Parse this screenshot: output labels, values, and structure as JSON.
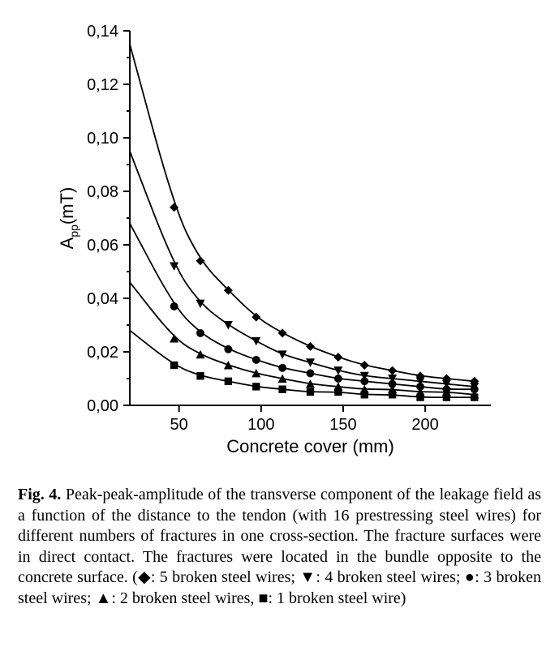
{
  "chart": {
    "type": "line-scatter",
    "background_color": "#ffffff",
    "line_color": "#000000",
    "marker_color": "#000000",
    "x_axis": {
      "title": "Concrete cover (mm)",
      "min": 20,
      "max": 240,
      "ticks": [
        50,
        100,
        150,
        200
      ],
      "title_fontsize": 22,
      "tick_fontsize": 20
    },
    "y_axis": {
      "title": "A_pp(mT)",
      "min": 0.0,
      "max": 0.14,
      "ticks": [
        0.0,
        0.02,
        0.04,
        0.06,
        0.08,
        0.1,
        0.12,
        0.14
      ],
      "tick_labels": [
        "0,00",
        "0,02",
        "0,04",
        "0,06",
        "0,08",
        "0,10",
        "0,12",
        "0,14"
      ],
      "title_fontsize": 22,
      "tick_fontsize": 20
    },
    "series": [
      {
        "name": "5 broken steel wires",
        "marker": "diamond",
        "curve_y_at_x20": 0.135,
        "points": [
          {
            "x": 47,
            "y": 0.074
          },
          {
            "x": 63,
            "y": 0.054
          },
          {
            "x": 80,
            "y": 0.043
          },
          {
            "x": 97,
            "y": 0.033
          },
          {
            "x": 113,
            "y": 0.027
          },
          {
            "x": 130,
            "y": 0.022
          },
          {
            "x": 147,
            "y": 0.018
          },
          {
            "x": 163,
            "y": 0.015
          },
          {
            "x": 180,
            "y": 0.013
          },
          {
            "x": 197,
            "y": 0.011
          },
          {
            "x": 213,
            "y": 0.01
          },
          {
            "x": 230,
            "y": 0.009
          }
        ]
      },
      {
        "name": "4 broken steel wires",
        "marker": "triangle-down",
        "curve_y_at_x20": 0.095,
        "points": [
          {
            "x": 47,
            "y": 0.052
          },
          {
            "x": 63,
            "y": 0.038
          },
          {
            "x": 80,
            "y": 0.03
          },
          {
            "x": 97,
            "y": 0.024
          },
          {
            "x": 113,
            "y": 0.019
          },
          {
            "x": 130,
            "y": 0.016
          },
          {
            "x": 147,
            "y": 0.013
          },
          {
            "x": 163,
            "y": 0.011
          },
          {
            "x": 180,
            "y": 0.01
          },
          {
            "x": 197,
            "y": 0.009
          },
          {
            "x": 213,
            "y": 0.008
          },
          {
            "x": 230,
            "y": 0.007
          }
        ]
      },
      {
        "name": "3 broken steel wires",
        "marker": "circle",
        "curve_y_at_x20": 0.068,
        "points": [
          {
            "x": 47,
            "y": 0.037
          },
          {
            "x": 63,
            "y": 0.027
          },
          {
            "x": 80,
            "y": 0.021
          },
          {
            "x": 97,
            "y": 0.017
          },
          {
            "x": 113,
            "y": 0.014
          },
          {
            "x": 130,
            "y": 0.012
          },
          {
            "x": 147,
            "y": 0.01
          },
          {
            "x": 163,
            "y": 0.009
          },
          {
            "x": 180,
            "y": 0.008
          },
          {
            "x": 197,
            "y": 0.007
          },
          {
            "x": 213,
            "y": 0.006
          },
          {
            "x": 230,
            "y": 0.006
          }
        ]
      },
      {
        "name": "2 broken steel wires",
        "marker": "triangle-up",
        "curve_y_at_x20": 0.046,
        "points": [
          {
            "x": 47,
            "y": 0.025
          },
          {
            "x": 63,
            "y": 0.019
          },
          {
            "x": 80,
            "y": 0.015
          },
          {
            "x": 97,
            "y": 0.012
          },
          {
            "x": 113,
            "y": 0.01
          },
          {
            "x": 130,
            "y": 0.008
          },
          {
            "x": 147,
            "y": 0.007
          },
          {
            "x": 163,
            "y": 0.006
          },
          {
            "x": 180,
            "y": 0.006
          },
          {
            "x": 197,
            "y": 0.005
          },
          {
            "x": 213,
            "y": 0.005
          },
          {
            "x": 230,
            "y": 0.004
          }
        ]
      },
      {
        "name": "1 broken steel wire",
        "marker": "square",
        "curve_y_at_x20": 0.028,
        "points": [
          {
            "x": 47,
            "y": 0.015
          },
          {
            "x": 63,
            "y": 0.011
          },
          {
            "x": 80,
            "y": 0.009
          },
          {
            "x": 97,
            "y": 0.007
          },
          {
            "x": 113,
            "y": 0.006
          },
          {
            "x": 130,
            "y": 0.005
          },
          {
            "x": 147,
            "y": 0.005
          },
          {
            "x": 163,
            "y": 0.004
          },
          {
            "x": 180,
            "y": 0.004
          },
          {
            "x": 197,
            "y": 0.003
          },
          {
            "x": 213,
            "y": 0.003
          },
          {
            "x": 230,
            "y": 0.003
          }
        ]
      }
    ]
  },
  "caption": {
    "fig_label": "Fig. 4.",
    "text_1": " Peak-peak-amplitude of the transverse component of the leakage field as a function of the distance to the tendon (with 16 prestressing steel wires) for different numbers of fractures in one cross-section. The fracture surfaces were in direct contact. The fractures were located in the bundle opposite to the concrete surface. (",
    "l1_sym": "◆",
    "l1_txt": ": 5 broken steel wires; ",
    "l2_sym": "▼",
    "l2_txt": ": 4 broken steel wires; ",
    "l3_sym": "●",
    "l3_txt": ": 3 broken steel wires; ",
    "l4_sym": "▲",
    "l4_txt": ": 2 broken steel wires, ",
    "l5_sym": "■",
    "l5_txt": ": 1 broken steel wire)"
  }
}
